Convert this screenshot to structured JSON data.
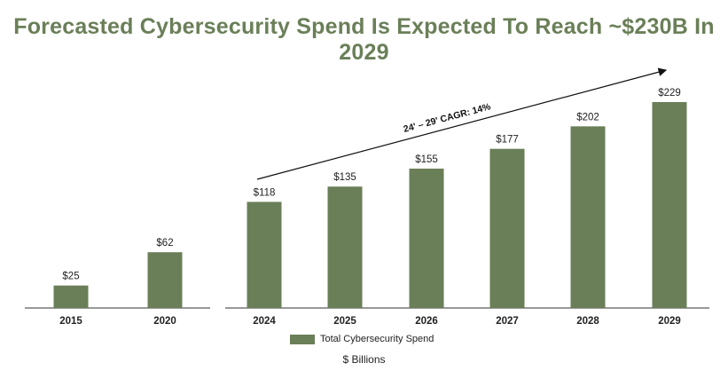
{
  "title": "Forecasted Cybersecurity Spend Is Expected To Reach ~$230B In 2029",
  "chart_data": {
    "type": "bar",
    "title": "Forecasted Cybersecurity Spend Is Expected To Reach ~$230B In 2029",
    "categories": [
      "2015",
      "2020",
      "2024",
      "2025",
      "2026",
      "2027",
      "2028",
      "2029"
    ],
    "groups": [
      [
        "2015",
        "2020"
      ],
      [
        "2024",
        "2025",
        "2026",
        "2027",
        "2028",
        "2029"
      ]
    ],
    "series": [
      {
        "name": "Total Cybersecurity Spend",
        "values": [
          25,
          62,
          118,
          135,
          155,
          177,
          202,
          229
        ],
        "labels": [
          "$25",
          "$62",
          "$118",
          "$135",
          "$155",
          "$177",
          "$202",
          "$229"
        ]
      }
    ],
    "ylabel": "$ Billions",
    "ylim": [
      0,
      250
    ],
    "annotation": "24' – 29' CAGR: 14%",
    "legend": "bottom-center"
  },
  "legend": {
    "label": "Total Cybersecurity Spend"
  },
  "units": "$ Billions",
  "colors": {
    "bar": "#6a7f58",
    "title": "#6a7f58",
    "axis": "#333333"
  }
}
